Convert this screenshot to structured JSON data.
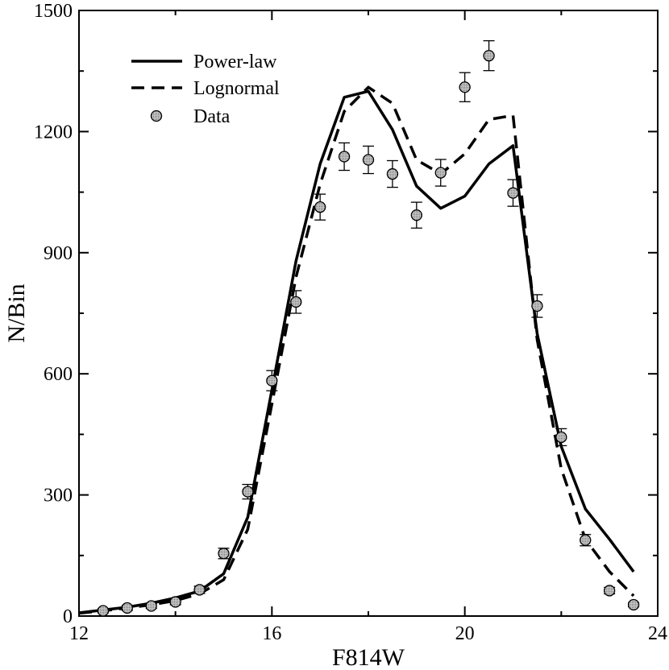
{
  "chart_data": {
    "type": "line",
    "title": "",
    "xlabel": "F814W",
    "ylabel": "N/Bin",
    "xlim": [
      12,
      24
    ],
    "ylim": [
      0,
      1500
    ],
    "x_ticks": [
      12,
      16,
      20,
      24
    ],
    "y_ticks": [
      0,
      300,
      600,
      900,
      1200,
      1500
    ],
    "x_tick_labels": [
      "12",
      "16",
      "20",
      "24"
    ],
    "y_tick_labels": [
      "0",
      "300",
      "600",
      "900",
      "1200",
      "1500"
    ],
    "legend_position": "top-left",
    "series": [
      {
        "name": "Power-law",
        "style": "solid",
        "x": [
          12.0,
          12.5,
          13.0,
          13.5,
          14.0,
          14.5,
          15.0,
          15.5,
          16.0,
          16.5,
          17.0,
          17.5,
          18.0,
          18.5,
          19.0,
          19.5,
          20.0,
          20.5,
          21.0,
          21.5,
          22.0,
          22.5,
          23.0,
          23.5
        ],
        "y": [
          8,
          15,
          22,
          32,
          45,
          62,
          105,
          245,
          560,
          880,
          1120,
          1285,
          1300,
          1205,
          1065,
          1010,
          1040,
          1120,
          1165,
          700,
          420,
          265,
          190,
          110
        ]
      },
      {
        "name": "Lognormal",
        "style": "dashed",
        "x": [
          12.0,
          12.5,
          13.0,
          13.5,
          14.0,
          14.5,
          15.0,
          15.5,
          16.0,
          16.5,
          17.0,
          17.5,
          18.0,
          18.5,
          19.0,
          19.5,
          20.0,
          20.5,
          21.0,
          21.5,
          22.0,
          22.5,
          23.0,
          23.5
        ],
        "y": [
          7,
          13,
          20,
          28,
          38,
          55,
          90,
          215,
          525,
          840,
          1070,
          1250,
          1310,
          1270,
          1130,
          1095,
          1145,
          1230,
          1240,
          685,
          365,
          190,
          110,
          50
        ]
      },
      {
        "name": "Data",
        "style": "markers",
        "x": [
          12.5,
          13.0,
          13.5,
          14.0,
          14.5,
          15.0,
          15.5,
          16.0,
          16.5,
          17.0,
          17.5,
          18.0,
          18.5,
          19.0,
          19.5,
          20.0,
          20.5,
          21.0,
          21.5,
          22.0,
          22.5,
          23.0,
          23.5
        ],
        "y": [
          13,
          20,
          25,
          35,
          65,
          155,
          308,
          583,
          778,
          1013,
          1138,
          1130,
          1095,
          993,
          1098,
          1310,
          1388,
          1048,
          768,
          443,
          188,
          63,
          28
        ],
        "err": [
          5,
          6,
          6,
          7,
          9,
          13,
          18,
          25,
          28,
          32,
          34,
          34,
          33,
          32,
          33,
          36,
          37,
          33,
          28,
          21,
          14,
          8,
          5
        ]
      }
    ]
  }
}
